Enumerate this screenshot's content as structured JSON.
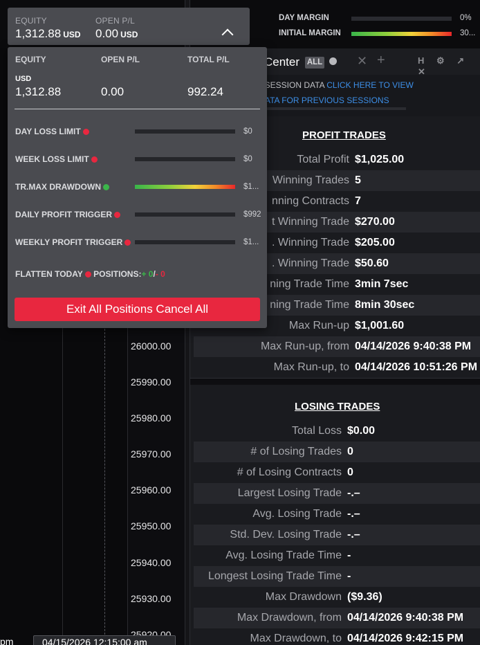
{
  "topbar": {
    "equity_label": "EQUITY",
    "equity_value": "1,312.88",
    "equity_currency": "USD",
    "openpl_label": "OPEN P/L",
    "openpl_value": "0.00",
    "openpl_currency": "USD",
    "toggle_icon": "chevron-up-icon"
  },
  "margins": {
    "day_label": "DAY MARGIN",
    "day_value": "0%",
    "day_fill": 0,
    "initial_label": "INITIAL MARGIN",
    "initial_value": "30...",
    "initial_fill": 1
  },
  "dropdown": {
    "headers": [
      "EQUITY",
      "OPEN P/L",
      "TOTAL P/L"
    ],
    "currency": "USD",
    "values": [
      "1,312.88",
      "0.00",
      "992.24"
    ],
    "limits": [
      {
        "label": "DAY LOSS LIMIT",
        "status": "red",
        "value": "$0",
        "fill": 0
      },
      {
        "label": "WEEK LOSS LIMIT",
        "status": "red",
        "value": "$0",
        "fill": 0
      },
      {
        "label": "TR.MAX DRAWDOWN",
        "status": "green",
        "value": "$1...",
        "fill": 1
      },
      {
        "label": "DAILY PROFIT TRIGGER",
        "status": "red",
        "value": "$992",
        "fill": 0
      },
      {
        "label": "WEEKLY PROFIT TRIGGER",
        "status": "red",
        "value": "$1...",
        "fill": 0
      }
    ],
    "flatten_label": "FLATTEN TODAY",
    "positions_label": "POSITIONS:",
    "positions_plus": "+ 0",
    "positions_sep": "/",
    "positions_minus": "- 0",
    "exit_button": "Exit All Positions Cancel All"
  },
  "chart": {
    "y_ticks": [
      "26000.00",
      "25990.00",
      "25980.00",
      "25970.00",
      "25960.00",
      "25950.00",
      "25940.00",
      "25930.00",
      "25920.00"
    ],
    "x_label_left": "pm",
    "x_label_cursor": "04/15/2026 12:15:00 am"
  },
  "panel": {
    "title": "Center",
    "all_badge": "ALL",
    "close_icon": "close-icon",
    "add_icon": "plus-icon",
    "toolbar_icons": "H ⚙ ↗ ✕",
    "session_text": "G SESSION DATA ",
    "session_link": "CLICK HERE TO VIEW",
    "session_link2": "ATA FOR PREVIOUS SESSIONS"
  },
  "profit": {
    "title": "PROFIT TRADES",
    "rows": [
      {
        "k": "Total Profit",
        "v": "$1,025.00"
      },
      {
        "k": "Winning Trades",
        "v": "5"
      },
      {
        "k": "nning Contracts",
        "v": "7"
      },
      {
        "k": "t Winning Trade",
        "v": "$270.00"
      },
      {
        "k": ". Winning Trade",
        "v": "$205.00"
      },
      {
        "k": ". Winning Trade",
        "v": "$50.60"
      },
      {
        "k": "ning Trade Time",
        "v": "3min 7sec"
      },
      {
        "k": "ning Trade Time",
        "v": "8min 30sec"
      },
      {
        "k": "Max Run-up",
        "v": "$1,001.60"
      },
      {
        "k": "Max Run-up, from",
        "v": "04/14/2026 9:40:38 PM"
      },
      {
        "k": "Max Run-up, to",
        "v": "04/14/2026 10:51:26 PM"
      }
    ]
  },
  "losing": {
    "title": "LOSING TRADES",
    "rows": [
      {
        "k": "Total Loss",
        "v": "$0.00"
      },
      {
        "k": "# of Losing Trades",
        "v": "0"
      },
      {
        "k": "# of Losing Contracts",
        "v": "0"
      },
      {
        "k": "Largest Losing Trade",
        "v": "-.–"
      },
      {
        "k": "Avg. Losing Trade",
        "v": "-.–"
      },
      {
        "k": "Std. Dev. Losing Trade",
        "v": "-.–"
      },
      {
        "k": "Avg. Losing Trade Time",
        "v": "-"
      },
      {
        "k": "Longest Losing Trade Time",
        "v": "-"
      },
      {
        "k": "Max Drawdown",
        "v": "($9.36)"
      },
      {
        "k": "Max Drawdown, from",
        "v": "04/14/2026 9:40:38 PM"
      },
      {
        "k": "Max Drawdown, to",
        "v": "04/14/2026 9:42:15 PM"
      }
    ]
  }
}
